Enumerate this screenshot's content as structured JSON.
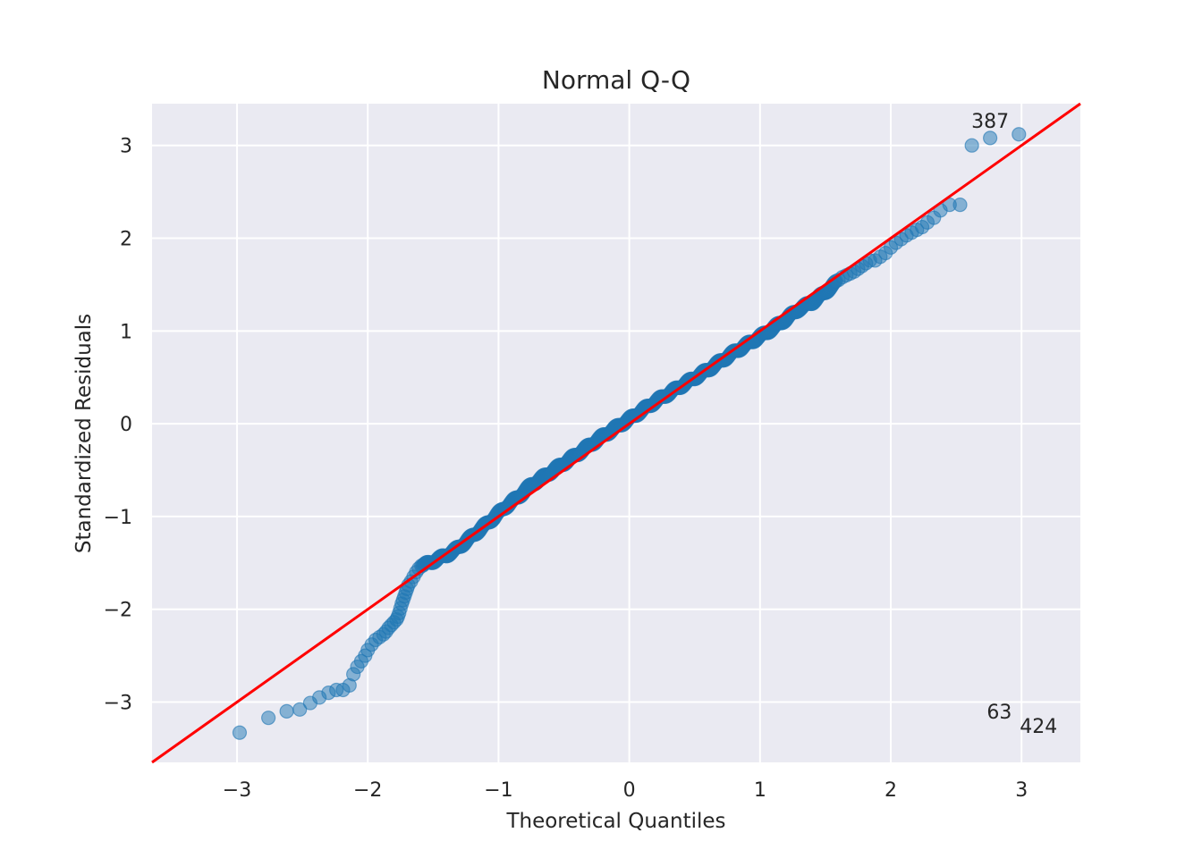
{
  "chart_data": {
    "type": "scatter",
    "title": "Normal Q-Q",
    "xlabel": "Theoretical Quantiles",
    "ylabel": "Standardized Residuals",
    "xlim": [
      -3.65,
      3.45
    ],
    "ylim": [
      -3.65,
      3.45
    ],
    "xticks": [
      -3,
      -2,
      -1,
      0,
      1,
      2,
      3
    ],
    "xtick_labels": [
      "−3",
      "−2",
      "−1",
      "0",
      "1",
      "2",
      "3"
    ],
    "yticks": [
      -3,
      -2,
      -1,
      0,
      1,
      2,
      3
    ],
    "ytick_labels": [
      "−3",
      "−2",
      "−1",
      "0",
      "1",
      "2",
      "3"
    ],
    "grid": true,
    "legend": "none",
    "colors": {
      "background": "#eaeaf2",
      "grid": "#ffffff",
      "points": "#1f77b4",
      "line": "#ff0000"
    },
    "reference_line": {
      "slope": 1,
      "intercept": 0
    },
    "tail_points": {
      "x": [
        -2.98,
        -2.76,
        -2.62,
        -2.52,
        -2.44,
        -2.37,
        -2.3,
        -2.24,
        -2.19,
        -2.14,
        -2.11,
        -2.08,
        -2.05,
        -2.02,
        -2.0,
        -1.97,
        -1.94,
        -1.91,
        -1.88,
        -1.86,
        -1.84,
        -1.82,
        -1.8,
        -1.78,
        -1.77,
        -1.76,
        -1.75,
        -1.74,
        -1.73,
        -1.72,
        -1.71,
        -1.7,
        -1.69,
        -1.67,
        -1.65,
        -1.63,
        -1.61,
        -1.59,
        1.6,
        1.63,
        1.66,
        1.69,
        1.72,
        1.75,
        1.78,
        1.81,
        1.84,
        1.88,
        1.92,
        1.96,
        2.0,
        2.04,
        2.08,
        2.12,
        2.16,
        2.2,
        2.24,
        2.28,
        2.33,
        2.38,
        2.45,
        2.53,
        2.62,
        2.76,
        2.98
      ],
      "y": [
        -3.33,
        -3.17,
        -3.1,
        -3.08,
        -3.01,
        -2.95,
        -2.9,
        -2.87,
        -2.87,
        -2.82,
        -2.7,
        -2.62,
        -2.56,
        -2.5,
        -2.44,
        -2.38,
        -2.33,
        -2.3,
        -2.27,
        -2.24,
        -2.2,
        -2.17,
        -2.14,
        -2.11,
        -2.08,
        -2.04,
        -1.99,
        -1.94,
        -1.9,
        -1.86,
        -1.82,
        -1.78,
        -1.74,
        -1.7,
        -1.65,
        -1.6,
        -1.56,
        -1.53,
        1.55,
        1.58,
        1.6,
        1.62,
        1.64,
        1.67,
        1.7,
        1.73,
        1.76,
        1.76,
        1.8,
        1.84,
        1.9,
        1.95,
        1.99,
        2.03,
        2.06,
        2.09,
        2.12,
        2.17,
        2.22,
        2.3,
        2.36,
        2.36,
        3.0,
        3.08,
        3.12
      ]
    },
    "body_quantile_range": [
      -1.58,
      1.58
    ],
    "body_curve": {
      "x": [
        -1.58,
        -1.45,
        -1.35,
        -1.25,
        -1.15,
        -1.05,
        -0.95,
        -0.85,
        -0.75,
        -0.6,
        -0.4,
        -0.2,
        0.0,
        0.2,
        0.4,
        0.6,
        0.8,
        1.0,
        1.1,
        1.2,
        1.3,
        1.4,
        1.5,
        1.58
      ],
      "y": [
        -1.53,
        -1.45,
        -1.38,
        -1.27,
        -1.15,
        -1.03,
        -0.9,
        -0.79,
        -0.66,
        -0.52,
        -0.33,
        -0.13,
        0.05,
        0.24,
        0.41,
        0.58,
        0.77,
        0.94,
        1.03,
        1.13,
        1.24,
        1.31,
        1.42,
        1.52
      ]
    },
    "annotations": [
      {
        "text": "387",
        "x": 2.76,
        "y": 3.19
      },
      {
        "text": "63",
        "x": 2.83,
        "y": -3.18
      },
      {
        "text": "424",
        "x": 3.13,
        "y": -3.33
      }
    ]
  }
}
